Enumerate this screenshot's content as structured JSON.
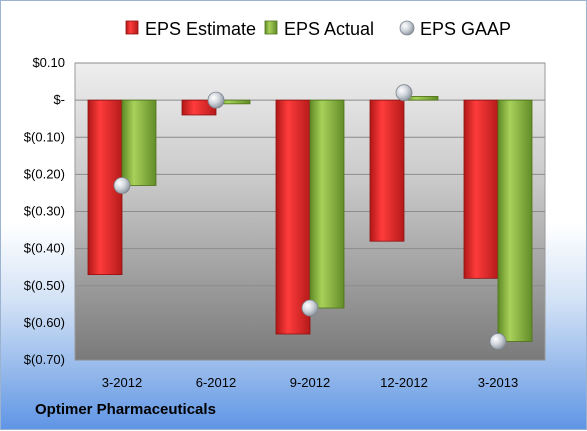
{
  "company": "Optimer Pharmaceuticals",
  "colors": {
    "estimate": "#d42020",
    "actual": "#7fa83a",
    "gaap": "#c7cdd6",
    "plot_top": "#e9e9e9",
    "plot_bottom": "#7d7d7d",
    "grid": "#8c8c8c"
  },
  "chart_data": {
    "type": "bar",
    "title": "",
    "xlabel": "",
    "ylabel": "",
    "categories": [
      "3-2012",
      "6-2012",
      "9-2012",
      "12-2012",
      "3-2013"
    ],
    "series": [
      {
        "name": "EPS Estimate",
        "kind": "bar",
        "color": "#d42020",
        "values": [
          -0.47,
          -0.04,
          -0.63,
          -0.38,
          -0.48
        ]
      },
      {
        "name": "EPS Actual",
        "kind": "bar",
        "color": "#7fa83a",
        "values": [
          -0.23,
          -0.01,
          -0.56,
          0.01,
          -0.65
        ]
      },
      {
        "name": "EPS GAAP",
        "kind": "marker",
        "color": "#c7cdd6",
        "values": [
          -0.23,
          0.0,
          -0.56,
          0.02,
          -0.65
        ]
      }
    ],
    "ylim": [
      -0.7,
      0.1
    ],
    "yticks": [
      0.1,
      0.0,
      -0.1,
      -0.2,
      -0.3,
      -0.4,
      -0.5,
      -0.6,
      -0.7
    ],
    "ytick_labels": [
      "$0.10",
      "$-",
      "$(0.10)",
      "$(0.20)",
      "$(0.30)",
      "$(0.40)",
      "$(0.50)",
      "$(0.60)",
      "$(0.70)"
    ],
    "grid": true,
    "legend_position": "top"
  }
}
